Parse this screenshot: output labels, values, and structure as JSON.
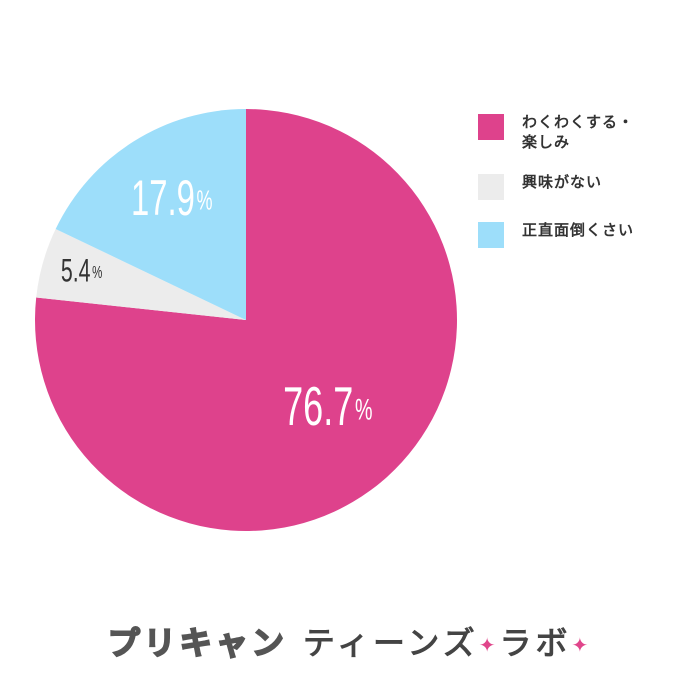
{
  "chart_data": {
    "type": "pie",
    "start_angle_deg": 0,
    "direction": "clockwise",
    "slices": [
      {
        "label": "わくわくする・\n楽しみ",
        "value": 76.7,
        "display": "76.7",
        "unit": "%",
        "color": "#de428c",
        "label_color": "#ffffff"
      },
      {
        "label": "興味がない",
        "value": 5.4,
        "display": "5.4",
        "unit": "%",
        "color": "#ececec",
        "label_color": "#333333"
      },
      {
        "label": "正直面倒くさい",
        "value": 17.9,
        "display": "17.9",
        "unit": "%",
        "color": "#9ddefa",
        "label_color": "#ffffff"
      }
    ],
    "legend_position": "right"
  },
  "footer": {
    "logo_part1": "プリキャン",
    "logo_part2": "ティーンズ",
    "sparkle": "✦",
    "logo_part3": "ラボ"
  }
}
